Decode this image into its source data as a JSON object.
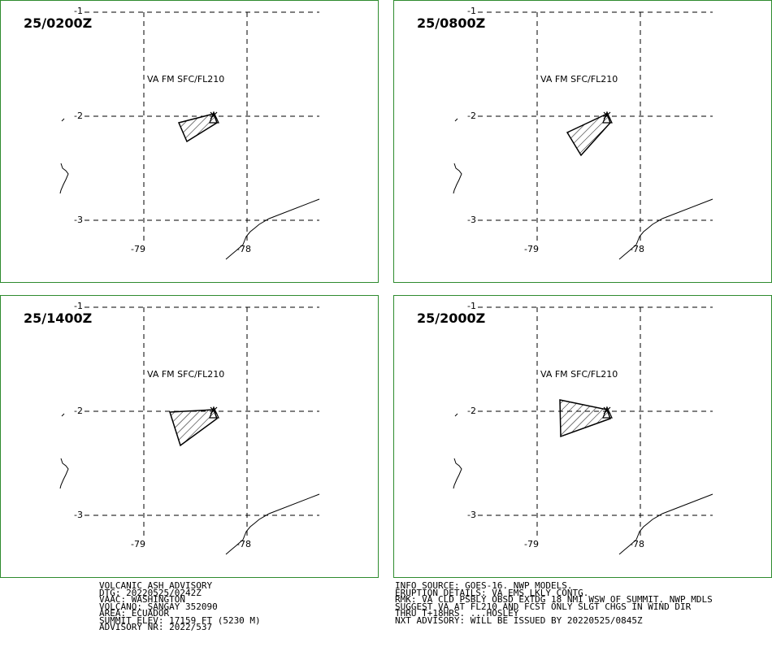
{
  "panels": [
    {
      "time": "25/0200Z",
      "va": "VA FM SFC/FL210"
    },
    {
      "time": "25/0800Z",
      "va": "VA FM SFC/FL210"
    },
    {
      "time": "25/1400Z",
      "va": "VA FM SFC/FL210"
    },
    {
      "time": "25/2000Z",
      "va": "VA FM SFC/FL210"
    }
  ],
  "grid_labels": {
    "lat_top": "-1",
    "lat_mid": "-2",
    "lat_bot": "-3",
    "lon_left": "-79",
    "lon_right": "-78"
  },
  "colors": {
    "panel_border": "#2e8b2e",
    "lines": "#000000"
  },
  "advisory_left": [
    "VOLCANIC ASH ADVISORY",
    "DTG: 20220525/0242Z",
    "VAAC: WASHINGTON",
    "VOLCANO: SANGAY 352090",
    "AREA: ECUADOR",
    "SUMMIT ELEV: 17159 FT (5230 M)",
    "ADVISORY NR: 2022/537"
  ],
  "advisory_right": [
    "INFO SOURCE: GOES-16. NWP MODELS.",
    "ERUPTION DETAILS: VA EMS LKLY CONTG.",
    "RMK: VA CLD PSBLY OBSD EXTDG 18 NMI WSW OF SUMMIT. NWP MDLS",
    "SUGGEST VA AT FL210 AND FCST ONLY SLGT CHGS IN WIND DIR",
    "THRU T+18HRS. ...HOSLEY",
    "NXT ADVISORY: WILL BE ISSUED BY 20220525/0845Z"
  ]
}
